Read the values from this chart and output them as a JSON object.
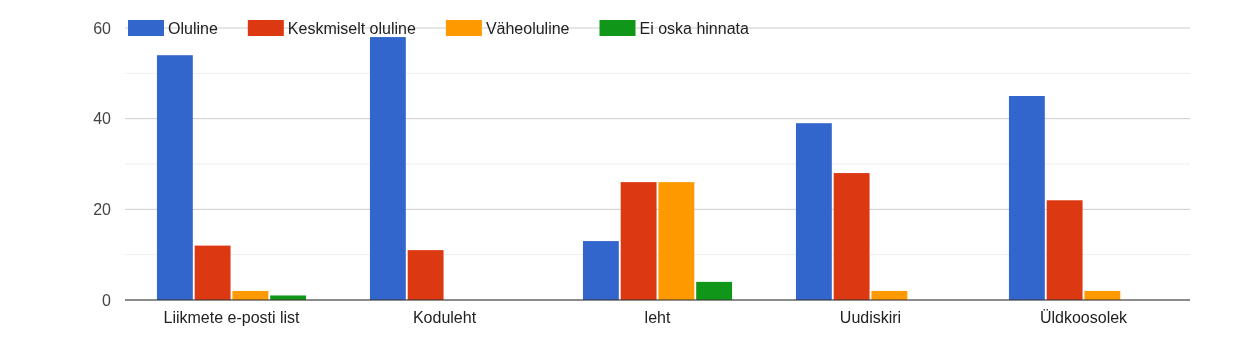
{
  "chart_data": {
    "type": "bar",
    "categories": [
      "Liikmete e-posti list",
      "Koduleht",
      "leht",
      "Uudiskiri",
      "Üldkoosolek"
    ],
    "series": [
      {
        "name": "Oluline",
        "color": "#3366cc",
        "values": [
          54,
          58,
          13,
          39,
          45
        ]
      },
      {
        "name": "Keskmiselt oluline",
        "color": "#dc3912",
        "values": [
          12,
          11,
          26,
          28,
          22
        ]
      },
      {
        "name": "Väheoluline",
        "color": "#ff9900",
        "values": [
          2,
          0,
          26,
          2,
          2
        ]
      },
      {
        "name": "Ei oska hinnata",
        "color": "#109618",
        "values": [
          1,
          0,
          4,
          0,
          0
        ]
      }
    ],
    "ylim": [
      0,
      60
    ],
    "yticks": [
      0,
      {
        "value": 10,
        "label": null
      },
      20,
      {
        "value": 30,
        "label": null
      },
      40,
      {
        "value": 50,
        "label": null
      },
      60
    ],
    "grid": true,
    "legend": "top"
  }
}
